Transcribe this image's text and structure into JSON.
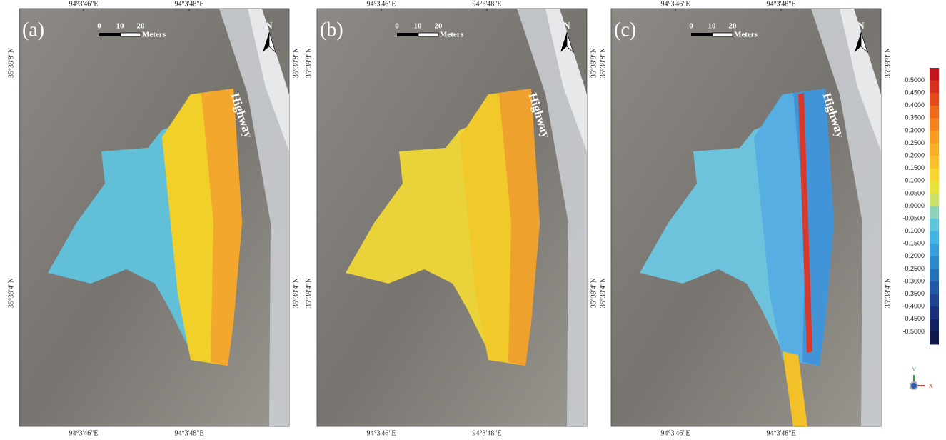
{
  "panels": [
    {
      "label": "(a)",
      "scale": [
        "0",
        "10",
        "20"
      ],
      "scale_unit": "Meters",
      "north": "N",
      "road": "Highway",
      "lon_top": [
        "94°3'46\"E",
        "94°3'48\"E"
      ],
      "lon_bottom": [
        "94°3'46\"E",
        "94°3'48\"E"
      ],
      "lat_left": [
        "35°39'8\"N",
        "35°39'4\"N"
      ],
      "lat_right": [
        "35°39'8\"N",
        "35°39'4\"N"
      ]
    },
    {
      "label": "(b)",
      "scale": [
        "0",
        "10",
        "20"
      ],
      "scale_unit": "Meters",
      "north": "N",
      "road": "Highway",
      "lon_top": [
        "94°3'46\"E",
        "94°3'48\"E"
      ],
      "lon_bottom": [
        "94°3'46\"E",
        "94°3'48\"E"
      ],
      "lat_left": [
        "35°39'8\"N",
        "35°39'4\"N"
      ],
      "lat_right": [
        "35°39'8\"N",
        "35°39'4\"N"
      ]
    },
    {
      "label": "(c)",
      "scale": [
        "0",
        "10",
        "20"
      ],
      "scale_unit": "Meters",
      "north": "N",
      "road": "Highway",
      "lon_top": [
        "94°3'46\"E",
        "94°3'48\"E"
      ],
      "lon_bottom": [
        "94°3'46\"E",
        "94°3'48\"E"
      ],
      "lat_left": [
        "35°39'8\"N",
        "35°39'4\"N"
      ],
      "lat_right": [
        "35°39'8\"N",
        "35°39'4\"N"
      ]
    }
  ],
  "legend": {
    "labels": [
      "0.5000",
      "0.4500",
      "0.4000",
      "0.3500",
      "0.3000",
      "0.2500",
      "0.2000",
      "0.1500",
      "0.1000",
      "0.0500",
      "0.0000",
      "-0.0500",
      "-0.1000",
      "-0.1500",
      "-0.2000",
      "-0.2500",
      "-0.3000",
      "-0.3500",
      "-0.4000",
      "-0.4500",
      "-0.5000"
    ]
  },
  "axes_icon": {
    "y": "Y",
    "x": "X"
  }
}
